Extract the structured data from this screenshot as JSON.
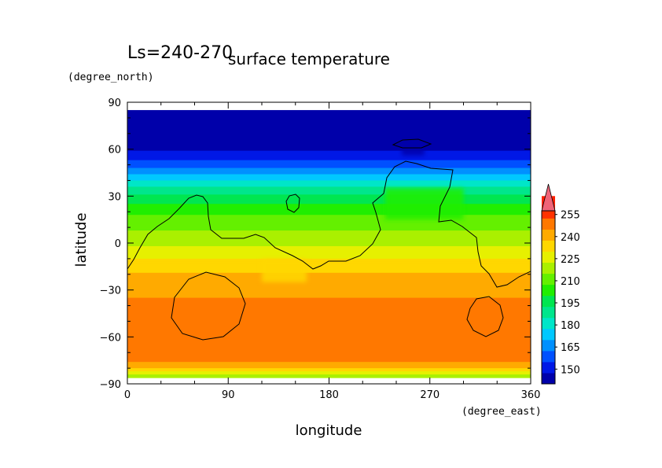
{
  "chart_data": {
    "type": "heatmap",
    "title": "surface temperature",
    "subtitle": "Ls=240-270",
    "xlabel": "longitude",
    "ylabel": "latitude",
    "x_units": "(degree_east)",
    "y_units": "(degree_north)",
    "xlim": [
      0,
      360
    ],
    "ylim": [
      -90,
      90
    ],
    "x_ticks": [
      "0",
      "90",
      "180",
      "270",
      "360"
    ],
    "y_ticks": [
      "90",
      "60",
      "30",
      "0",
      "−30",
      "−60",
      "−90"
    ],
    "x_tick_values": [
      0,
      90,
      180,
      270,
      360
    ],
    "y_tick_values": [
      90,
      60,
      30,
      0,
      -30,
      -60,
      -90
    ],
    "colorbar": {
      "min": 140,
      "max": 260,
      "step": 7.5,
      "labels": [
        "150",
        "165",
        "180",
        "195",
        "210",
        "225",
        "240",
        "255"
      ],
      "label_values": [
        150,
        165,
        180,
        195,
        210,
        225,
        240,
        255
      ],
      "extend": "max",
      "colors": [
        "#0000aa",
        "#0018e6",
        "#0050ff",
        "#0090ff",
        "#00c8ff",
        "#00e6c8",
        "#00e68c",
        "#00e650",
        "#20ee00",
        "#64f000",
        "#aaf000",
        "#e6f000",
        "#ffd700",
        "#ffaa00",
        "#ff7800",
        "#ff3200",
        "#ff2000",
        "#f06478"
      ]
    },
    "temperature_profile_by_latitude": [
      {
        "lat": 85,
        "temp": 146
      },
      {
        "lat": 60,
        "temp": 146
      },
      {
        "lat": 50,
        "temp": 158
      },
      {
        "lat": 40,
        "temp": 178
      },
      {
        "lat": 30,
        "temp": 195
      },
      {
        "lat": 15,
        "temp": 210
      },
      {
        "lat": 0,
        "temp": 220
      },
      {
        "lat": -15,
        "temp": 235
      },
      {
        "lat": -30,
        "temp": 244
      },
      {
        "lat": -60,
        "temp": 250
      },
      {
        "lat": -75,
        "temp": 248
      },
      {
        "lat": -82,
        "temp": 232
      },
      {
        "lat": -85,
        "temp": 215
      }
    ]
  }
}
